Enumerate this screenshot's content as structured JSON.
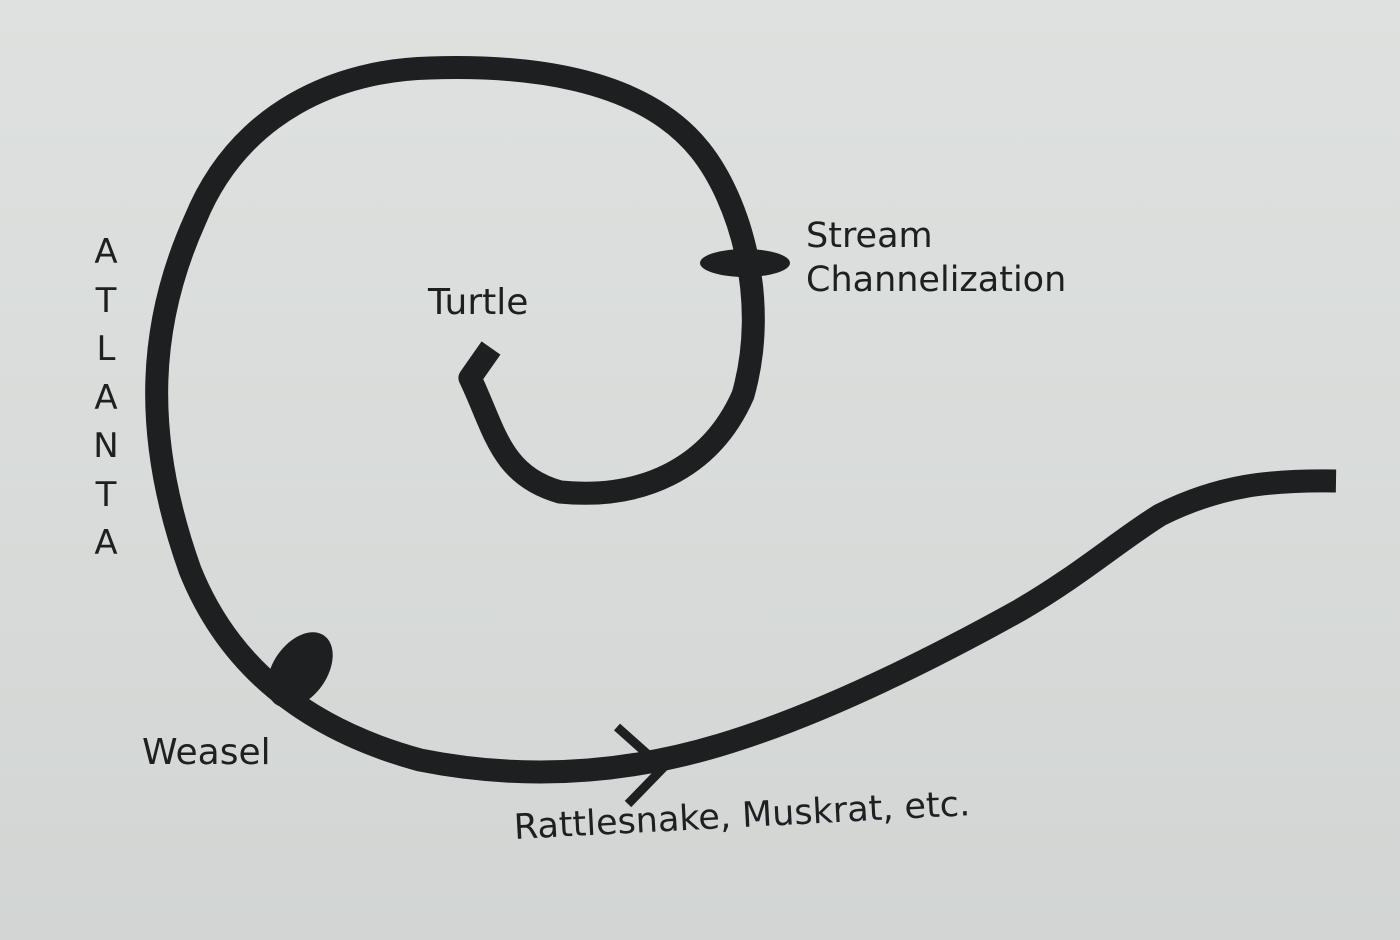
{
  "diagram": {
    "labels": {
      "turtle": "Turtle",
      "stream_line1": "Stream",
      "stream_line2": "Channelization",
      "weasel": "Weasel",
      "rattlesnake": "Rattlesnake, Muskrat, etc.",
      "atlanta_letters": [
        "A",
        "T",
        "L",
        "A",
        "N",
        "T",
        "A"
      ]
    },
    "colors": {
      "ink": "#1e1f21",
      "paper": "#d9dcda"
    }
  }
}
